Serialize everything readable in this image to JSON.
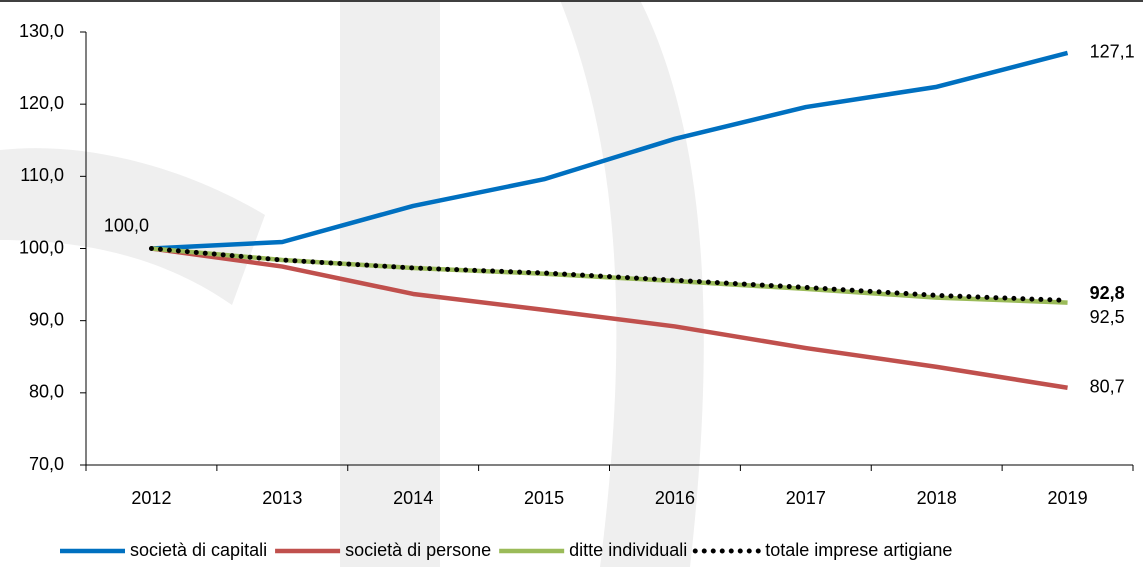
{
  "chart_data": {
    "type": "line",
    "categories": [
      "2012",
      "2013",
      "2014",
      "2015",
      "2016",
      "2017",
      "2018",
      "2019"
    ],
    "ylim": [
      70,
      130
    ],
    "yticks": [
      {
        "value": 70,
        "label": "70,0"
      },
      {
        "value": 80,
        "label": "80,0"
      },
      {
        "value": 90,
        "label": "90,0"
      },
      {
        "value": 100,
        "label": "100,0"
      },
      {
        "value": 110,
        "label": "110,0"
      },
      {
        "value": 120,
        "label": "120,0"
      },
      {
        "value": 130,
        "label": "130,0"
      }
    ],
    "legend": "bottom",
    "series": [
      {
        "name": "società di capitali",
        "color": "#0070c0",
        "style": "solid",
        "values": [
          100,
          100.9,
          105.9,
          109.6,
          115.2,
          119.6,
          122.4,
          127.1
        ],
        "value_labels": [
          "100,0",
          null,
          null,
          null,
          null,
          null,
          null,
          "127,1"
        ]
      },
      {
        "name": "società di persone",
        "color": "#c0504d",
        "style": "solid",
        "values": [
          100,
          97.5,
          93.7,
          91.5,
          89.2,
          86.2,
          83.6,
          80.7
        ],
        "value_labels": [
          null,
          null,
          null,
          null,
          null,
          null,
          null,
          "80,7"
        ]
      },
      {
        "name": "ditte individuali",
        "color": "#9bbb59",
        "style": "solid",
        "values": [
          100,
          98.4,
          97.3,
          96.5,
          95.5,
          94.4,
          93.2,
          92.5
        ],
        "value_labels": [
          null,
          null,
          null,
          null,
          null,
          null,
          null,
          "92,5"
        ]
      },
      {
        "name": "totale imprese artigiane",
        "color": "#000000",
        "style": "dotted",
        "label_bold": true,
        "values": [
          100,
          98.4,
          97.3,
          96.6,
          95.6,
          94.6,
          93.5,
          92.8
        ],
        "value_labels": [
          null,
          null,
          null,
          null,
          null,
          null,
          null,
          "92,8"
        ]
      }
    ]
  }
}
